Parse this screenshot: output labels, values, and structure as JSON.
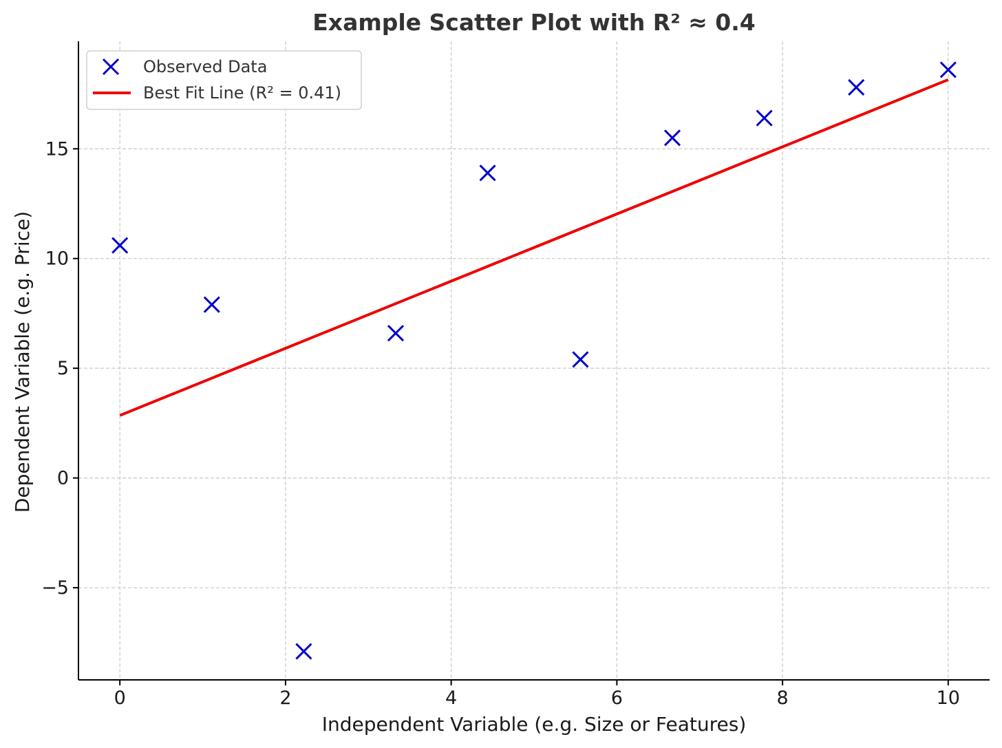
{
  "chart_data": {
    "type": "scatter",
    "title": "Example Scatter Plot with R² ≈ 0.4",
    "xlabel": "Independent Variable (e.g. Size or Features)",
    "ylabel": "Dependent Variable (e.g. Price)",
    "xlim": [
      -0.5,
      10.5
    ],
    "ylim": [
      -9.2,
      19.9
    ],
    "xticks": [
      0,
      2,
      4,
      6,
      8,
      10
    ],
    "xtick_labels": [
      "0",
      "2",
      "4",
      "6",
      "8",
      "10"
    ],
    "yticks": [
      -5,
      0,
      5,
      10,
      15
    ],
    "ytick_labels": [
      "−5",
      "0",
      "5",
      "10",
      "15"
    ],
    "grid": true,
    "legend_position": "top-left",
    "series": [
      {
        "name": "Observed Data",
        "kind": "scatter",
        "marker": "x",
        "color": "#0000cc",
        "x": [
          0.0,
          1.11,
          2.22,
          3.33,
          4.44,
          5.56,
          6.67,
          7.78,
          8.89,
          10.0
        ],
        "y": [
          10.6,
          7.9,
          -7.9,
          6.6,
          13.9,
          5.4,
          15.5,
          16.4,
          17.8,
          18.6
        ]
      },
      {
        "name": "Best Fit Line (R² = 0.41)",
        "kind": "line",
        "color": "#ee0000",
        "x": [
          0.0,
          10.0
        ],
        "y": [
          2.85,
          18.15
        ]
      }
    ]
  }
}
